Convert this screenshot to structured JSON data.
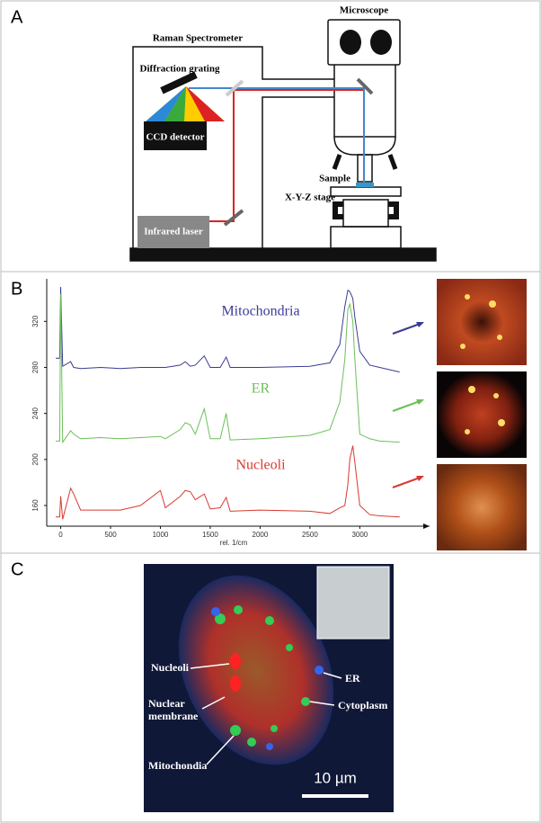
{
  "panels": [
    {
      "label": "A",
      "labels": {
        "spectrometer": "Raman Spectrometer",
        "microscope": "Microscope",
        "grating": "Diffraction grating",
        "ccd": "CCD detector",
        "sample": "Sample",
        "stage": "X-Y-Z stage",
        "laser": "Infrared laser"
      }
    },
    {
      "label": "B"
    },
    {
      "label": "C",
      "labels": {
        "nucleoli": "Nucleoli",
        "membrane": "Nuclear membrane",
        "mito": "Mitochondia",
        "er": "ER",
        "cyto": "Cytoplasm",
        "scale": "10 µm"
      }
    }
  ],
  "chart_data": {
    "type": "line",
    "xlabel": "rel. 1/cm",
    "x": [
      -50,
      -10,
      0,
      20,
      100,
      130,
      200,
      400,
      600,
      800,
      1000,
      1050,
      1200,
      1250,
      1300,
      1350,
      1440,
      1500,
      1600,
      1660,
      1700,
      2000,
      2500,
      2700,
      2800,
      2850,
      2880,
      2900,
      2930,
      2950,
      3000,
      3100,
      3200,
      3400
    ],
    "series": [
      {
        "name": "Mitochondria",
        "color": "#3b3b96",
        "values": [
          288,
          288,
          350,
          281,
          285,
          280,
          279,
          280,
          279,
          280,
          280,
          280,
          282,
          285,
          281,
          282,
          290,
          280,
          280,
          289,
          280,
          280,
          281,
          284,
          300,
          333,
          347,
          346,
          340,
          324,
          294,
          282,
          280,
          276
        ]
      },
      {
        "name": "ER",
        "color": "#6cbf5a",
        "values": [
          216,
          216,
          344,
          215,
          225,
          222,
          218,
          219,
          218,
          219,
          220,
          218,
          226,
          232,
          230,
          222,
          244,
          218,
          218,
          240,
          217,
          218,
          221,
          226,
          250,
          287,
          330,
          335,
          320,
          288,
          222,
          218,
          216,
          215
        ]
      },
      {
        "name": "Nucleoli",
        "color": "#d93a30",
        "values": [
          150,
          150,
          168,
          148,
          175,
          170,
          156,
          156,
          156,
          160,
          173,
          158,
          168,
          173,
          172,
          165,
          170,
          157,
          158,
          167,
          155,
          156,
          155,
          153,
          158,
          160,
          178,
          200,
          212,
          198,
          160,
          152,
          151,
          150
        ]
      }
    ],
    "xlim": [
      -140,
      3700
    ],
    "ylim": [
      142,
      357
    ],
    "xticks": [
      0,
      500,
      1000,
      1500,
      2000,
      2500,
      3000
    ],
    "yticks": [
      160,
      200,
      240,
      280,
      320
    ]
  }
}
